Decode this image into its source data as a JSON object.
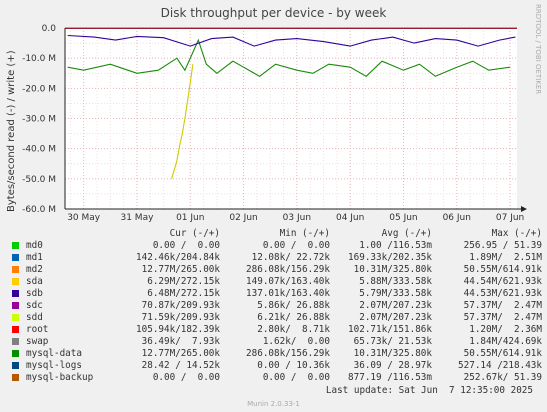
{
  "chart_data": {
    "type": "line",
    "title": "Disk throughput per device - by week",
    "ylabel": "Bytes/second read (-) / write (+)",
    "ylim": [
      -60,
      0
    ],
    "y_ticks": [
      "0.0",
      "-10.0 M",
      "-20.0 M",
      "-30.0 M",
      "-40.0 M",
      "-50.0 M",
      "-60.0 M"
    ],
    "x_ticks": [
      "30 May",
      "31 May",
      "01 Jun",
      "02 Jun",
      "03 Jun",
      "04 Jun",
      "05 Jun",
      "06 Jun",
      "07 Jun"
    ],
    "x_days": [
      0,
      1,
      2,
      3,
      4,
      5,
      6,
      7,
      8
    ],
    "x_range": [
      -0.35,
      8.13
    ],
    "series": [
      {
        "name": "mysql-data",
        "color": "#1a8a0a",
        "x": [
          -0.3,
          0,
          0.5,
          1,
          1.4,
          1.75,
          1.9,
          2.15,
          2.3,
          2.5,
          2.8,
          3,
          3.3,
          3.6,
          4,
          4.3,
          4.6,
          5,
          5.3,
          5.6,
          6,
          6.3,
          6.6,
          7,
          7.3,
          7.6,
          8
        ],
        "values": [
          -13,
          -14,
          -12,
          -15,
          -14,
          -10,
          -14,
          -4,
          -12,
          -15,
          -11,
          -13,
          -16,
          -12,
          -14,
          -15,
          -12,
          -13,
          -16,
          -11,
          -14,
          -12,
          -16,
          -13,
          -11,
          -14,
          -13
        ]
      },
      {
        "name": "sdc",
        "color": "#cccc00",
        "x": [
          1.65,
          1.7,
          1.75,
          1.8,
          1.85,
          1.9,
          1.95,
          2.0,
          2.05
        ],
        "values": [
          -50,
          -47,
          -44,
          -39,
          -35,
          -30,
          -24,
          -18,
          -12
        ]
      },
      {
        "name": "sdb",
        "color": "#330099",
        "x": [
          -0.3,
          0.2,
          0.6,
          1,
          1.5,
          2,
          2.4,
          2.8,
          3.2,
          3.6,
          4,
          4.5,
          5,
          5.4,
          5.8,
          6.2,
          6.6,
          7,
          7.4,
          7.8,
          8.1
        ],
        "values": [
          -2.5,
          -3,
          -4,
          -2.8,
          -3.2,
          -6,
          -3.5,
          -3,
          -6,
          -4,
          -3.5,
          -4.5,
          -6,
          -4,
          -3,
          -5,
          -3.5,
          -4,
          -6,
          -4,
          -3
        ]
      },
      {
        "name": "md1",
        "color": "#0066b3",
        "x": [
          -0.35,
          8.13
        ],
        "values": [
          -0.15,
          -0.15
        ]
      },
      {
        "name": "root",
        "color": "#cc0000",
        "x": [
          -0.35,
          8.13
        ],
        "values": [
          -0.08,
          -0.08
        ]
      }
    ]
  },
  "legend": {
    "headers": {
      "cur": "Cur (-/+)",
      "min": "Min (-/+)",
      "avg": "Avg (-/+)",
      "max": "Max (-/+)"
    },
    "rows": [
      {
        "name": "md0",
        "color": "#00cc00",
        "cur": "0.00 /  0.00",
        "min": "0.00 /  0.00",
        "avg": "1.00 /116.53m",
        "max": "256.95 / 51.39"
      },
      {
        "name": "md1",
        "color": "#0066b3",
        "cur": "142.46k/204.84k",
        "min": "12.08k/ 22.72k",
        "avg": "169.33k/202.35k",
        "max": "1.89M/  2.51M"
      },
      {
        "name": "md2",
        "color": "#ff8000",
        "cur": "12.77M/265.00k",
        "min": "286.08k/156.29k",
        "avg": "10.31M/325.80k",
        "max": "50.55M/614.91k"
      },
      {
        "name": "sda",
        "color": "#ffcc00",
        "cur": "6.29M/272.15k",
        "min": "149.07k/163.40k",
        "avg": "5.88M/333.58k",
        "max": "44.54M/621.93k"
      },
      {
        "name": "sdb",
        "color": "#330099",
        "cur": "6.48M/272.15k",
        "min": "137.01k/163.40k",
        "avg": "5.79M/333.58k",
        "max": "44.53M/621.93k"
      },
      {
        "name": "sdc",
        "color": "#990099",
        "cur": "70.87k/209.93k",
        "min": "5.86k/ 26.88k",
        "avg": "2.07M/207.23k",
        "max": "57.37M/  2.47M"
      },
      {
        "name": "sdd",
        "color": "#ccff00",
        "cur": "71.59k/209.93k",
        "min": "6.21k/ 26.88k",
        "avg": "2.07M/207.23k",
        "max": "57.37M/  2.47M"
      },
      {
        "name": "root",
        "color": "#ff0000",
        "cur": "105.94k/182.39k",
        "min": "2.80k/  8.71k",
        "avg": "102.71k/151.86k",
        "max": "1.20M/  2.36M"
      },
      {
        "name": "swap",
        "color": "#808080",
        "cur": "36.49k/  7.93k",
        "min": "1.62k/  0.00",
        "avg": "65.73k/ 21.53k",
        "max": "1.84M/424.69k"
      },
      {
        "name": "mysql-data",
        "color": "#008f00",
        "cur": "12.77M/265.00k",
        "min": "286.08k/156.29k",
        "avg": "10.31M/325.80k",
        "max": "50.55M/614.91k"
      },
      {
        "name": "mysql-logs",
        "color": "#00487d",
        "cur": "28.42 / 14.52k",
        "min": "0.00 / 10.36k",
        "avg": "36.09 / 28.97k",
        "max": "527.14 /218.43k"
      },
      {
        "name": "mysql-backup",
        "color": "#b35a00",
        "cur": "0.00 /  0.00",
        "min": "0.00 /  0.00",
        "avg": "877.19 /116.53m",
        "max": "252.67k/ 51.39"
      }
    ]
  },
  "footer": {
    "last_update": "Last update: Sat Jun  7 12:35:00 2025",
    "munin": "Munin 2.0.33-1"
  },
  "watermark": "RRDTOOL / TOBI OETIKER"
}
